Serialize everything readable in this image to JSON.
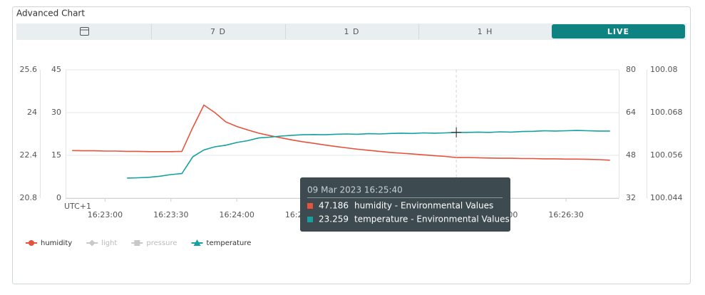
{
  "title": "Advanced Chart",
  "tabs": [
    "7 D",
    "1 D",
    "1 H",
    "LIVE"
  ],
  "active_tab": 3,
  "chart_data": {
    "type": "line",
    "timezone": "UTC+1",
    "x": [
      "16:22:45",
      "16:22:50",
      "16:22:55",
      "16:23:00",
      "16:23:05",
      "16:23:10",
      "16:23:15",
      "16:23:20",
      "16:23:25",
      "16:23:30",
      "16:23:35",
      "16:23:40",
      "16:23:45",
      "16:23:50",
      "16:23:55",
      "16:24:00",
      "16:24:05",
      "16:24:10",
      "16:24:15",
      "16:24:20",
      "16:24:25",
      "16:24:30",
      "16:24:35",
      "16:24:40",
      "16:24:45",
      "16:24:50",
      "16:24:55",
      "16:25:00",
      "16:25:05",
      "16:25:10",
      "16:25:15",
      "16:25:20",
      "16:25:25",
      "16:25:30",
      "16:25:35",
      "16:25:40",
      "16:25:45",
      "16:25:50",
      "16:25:55",
      "16:26:00",
      "16:26:05",
      "16:26:10",
      "16:26:15",
      "16:26:20",
      "16:26:25",
      "16:26:30",
      "16:26:35",
      "16:26:40",
      "16:26:45",
      "16:26:50"
    ],
    "xlim": [
      "16:22:42",
      "16:26:54"
    ],
    "xticks": [
      "16:23:00",
      "16:23:30",
      "16:24:00",
      "16:24:30",
      "16:25:00",
      "16:25:30",
      "16:26:00",
      "16:26:30"
    ],
    "ylim": [
      20.8,
      25.6
    ],
    "yticks": [
      20.8,
      22.4,
      24,
      25.6
    ],
    "y3lim": [
      0,
      45
    ],
    "y3ticks": [
      0,
      15,
      30,
      45
    ],
    "y2lim": [
      32,
      80
    ],
    "y2ticks": [
      32,
      48,
      64,
      80
    ],
    "y4lim": [
      100.044,
      100.08
    ],
    "y4ticks": [
      100.044,
      100.056,
      100.068,
      100.08
    ],
    "grid": true,
    "series": [
      {
        "name": "humidity",
        "color": "#e5533d",
        "marker": "circle",
        "axis": "y2",
        "visible": true,
        "values": [
          49.8,
          49.7,
          49.7,
          49.6,
          49.6,
          49.5,
          49.5,
          49.4,
          49.4,
          49.4,
          49.5,
          58.5,
          66.8,
          64.0,
          60.5,
          58.8,
          57.5,
          56.3,
          55.4,
          54.6,
          53.8,
          53.1,
          52.5,
          51.9,
          51.3,
          50.8,
          50.3,
          49.9,
          49.5,
          49.1,
          48.8,
          48.5,
          48.2,
          47.9,
          47.6,
          47.186,
          47.2,
          47.1,
          47.0,
          46.9,
          46.9,
          46.8,
          46.8,
          46.7,
          46.7,
          46.6,
          46.6,
          46.5,
          46.4,
          46.2
        ]
      },
      {
        "name": "light",
        "color": "#c8c8c8",
        "marker": "diamond",
        "axis": "y3",
        "visible": false
      },
      {
        "name": "pressure",
        "color": "#c8c8c8",
        "marker": "square",
        "axis": "y4",
        "visible": false
      },
      {
        "name": "temperature",
        "color": "#16a0a0",
        "marker": "triangle",
        "axis": "y",
        "visible": true,
        "values": [
          null,
          null,
          null,
          null,
          null,
          21.55,
          21.56,
          21.58,
          21.62,
          21.68,
          21.72,
          22.35,
          22.6,
          22.72,
          22.78,
          22.88,
          22.95,
          23.05,
          23.08,
          23.12,
          23.15,
          23.17,
          23.18,
          23.17,
          23.19,
          23.2,
          23.19,
          23.21,
          23.2,
          23.22,
          23.23,
          23.22,
          23.24,
          23.23,
          23.24,
          23.259,
          23.26,
          23.27,
          23.26,
          23.28,
          23.27,
          23.29,
          23.3,
          23.32,
          23.31,
          23.32,
          23.33,
          23.32,
          23.31,
          23.31
        ]
      }
    ]
  },
  "tooltip": {
    "title": "09 Mar 2023 16:25:40",
    "entries": [
      "humidity - Environmental Values",
      "temperature - Environmental Values"
    ]
  }
}
